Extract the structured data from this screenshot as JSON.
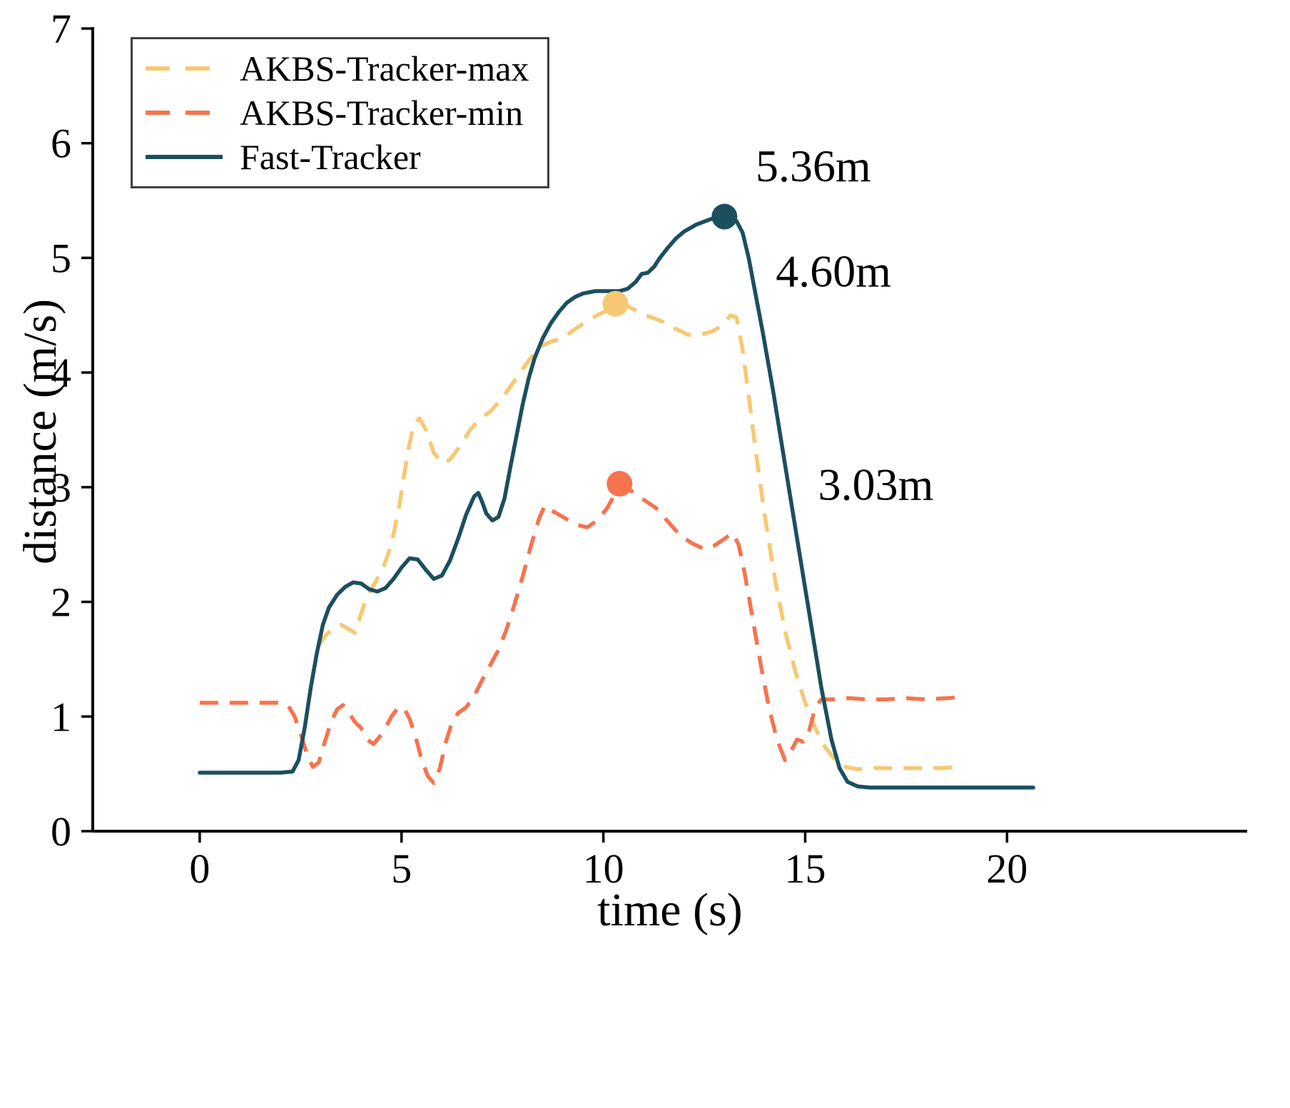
{
  "figure": {
    "background": "#ffffff",
    "axis_color": "#000000",
    "text_color": "#000000",
    "legend_border_color": "#3f3f3f"
  },
  "chart_data": {
    "type": "line",
    "title": "",
    "xlabel": "time (s)",
    "ylabel": "distance (m/s)",
    "xlim": [
      -2.65,
      25.95
    ],
    "ylim": [
      0,
      7
    ],
    "xticks": [
      0,
      5,
      10,
      15,
      20
    ],
    "yticks": [
      0,
      1,
      2,
      3,
      4,
      5,
      6,
      7
    ],
    "grid": false,
    "legend_position": "top-left",
    "series": [
      {
        "name": "AKBS-Tracker-max",
        "color": "#F7C873",
        "style": "dashed",
        "points": [
          [
            2.95,
            1.62
          ],
          [
            3.1,
            1.7
          ],
          [
            3.3,
            1.77
          ],
          [
            3.5,
            1.8
          ],
          [
            3.7,
            1.76
          ],
          [
            3.85,
            1.73
          ],
          [
            4.0,
            1.9
          ],
          [
            4.15,
            2.05
          ],
          [
            4.35,
            2.17
          ],
          [
            4.55,
            2.3
          ],
          [
            4.75,
            2.5
          ],
          [
            4.95,
            2.85
          ],
          [
            5.15,
            3.3
          ],
          [
            5.3,
            3.55
          ],
          [
            5.45,
            3.6
          ],
          [
            5.6,
            3.5
          ],
          [
            5.8,
            3.3
          ],
          [
            6.0,
            3.21
          ],
          [
            6.2,
            3.24
          ],
          [
            6.45,
            3.36
          ],
          [
            6.7,
            3.5
          ],
          [
            6.95,
            3.6
          ],
          [
            7.2,
            3.66
          ],
          [
            7.5,
            3.78
          ],
          [
            7.8,
            3.93
          ],
          [
            8.1,
            4.08
          ],
          [
            8.4,
            4.22
          ],
          [
            8.7,
            4.27
          ],
          [
            9.0,
            4.3
          ],
          [
            9.3,
            4.38
          ],
          [
            9.6,
            4.45
          ],
          [
            9.9,
            4.51
          ],
          [
            10.2,
            4.56
          ],
          [
            10.4,
            4.6
          ],
          [
            10.6,
            4.58
          ],
          [
            10.9,
            4.52
          ],
          [
            11.2,
            4.48
          ],
          [
            11.5,
            4.44
          ],
          [
            11.8,
            4.38
          ],
          [
            12.1,
            4.33
          ],
          [
            12.4,
            4.33
          ],
          [
            12.7,
            4.36
          ],
          [
            12.95,
            4.41
          ],
          [
            13.15,
            4.5
          ],
          [
            13.3,
            4.48
          ],
          [
            13.45,
            4.2
          ],
          [
            13.6,
            3.8
          ],
          [
            13.8,
            3.25
          ],
          [
            14.0,
            2.75
          ],
          [
            14.25,
            2.2
          ],
          [
            14.5,
            1.75
          ],
          [
            14.75,
            1.4
          ],
          [
            15.0,
            1.12
          ],
          [
            15.25,
            0.9
          ],
          [
            15.5,
            0.73
          ],
          [
            15.75,
            0.62
          ],
          [
            16.0,
            0.56
          ],
          [
            16.3,
            0.54
          ],
          [
            16.7,
            0.55
          ],
          [
            17.1,
            0.55
          ],
          [
            17.5,
            0.55
          ],
          [
            18.0,
            0.55
          ],
          [
            18.4,
            0.55
          ],
          [
            18.8,
            0.56
          ]
        ]
      },
      {
        "name": "AKBS-Tracker-min",
        "color": "#F5744E",
        "style": "dashed",
        "points": [
          [
            0,
            1.12
          ],
          [
            0.5,
            1.12
          ],
          [
            1.0,
            1.12
          ],
          [
            1.5,
            1.12
          ],
          [
            2.0,
            1.12
          ],
          [
            2.2,
            1.09
          ],
          [
            2.35,
            1.0
          ],
          [
            2.5,
            0.85
          ],
          [
            2.65,
            0.68
          ],
          [
            2.8,
            0.56
          ],
          [
            2.95,
            0.6
          ],
          [
            3.1,
            0.78
          ],
          [
            3.25,
            0.95
          ],
          [
            3.4,
            1.06
          ],
          [
            3.55,
            1.1
          ],
          [
            3.7,
            1.03
          ],
          [
            3.85,
            0.95
          ],
          [
            4.0,
            0.9
          ],
          [
            4.15,
            0.8
          ],
          [
            4.3,
            0.76
          ],
          [
            4.45,
            0.82
          ],
          [
            4.6,
            0.9
          ],
          [
            4.75,
            1.0
          ],
          [
            4.9,
            1.07
          ],
          [
            5.05,
            1.08
          ],
          [
            5.2,
            0.98
          ],
          [
            5.35,
            0.82
          ],
          [
            5.5,
            0.62
          ],
          [
            5.65,
            0.48
          ],
          [
            5.8,
            0.42
          ],
          [
            5.95,
            0.55
          ],
          [
            6.1,
            0.78
          ],
          [
            6.25,
            0.95
          ],
          [
            6.4,
            1.03
          ],
          [
            6.6,
            1.08
          ],
          [
            6.8,
            1.18
          ],
          [
            7.0,
            1.32
          ],
          [
            7.2,
            1.45
          ],
          [
            7.4,
            1.58
          ],
          [
            7.6,
            1.76
          ],
          [
            7.8,
            1.98
          ],
          [
            8.0,
            2.22
          ],
          [
            8.2,
            2.48
          ],
          [
            8.4,
            2.72
          ],
          [
            8.55,
            2.84
          ],
          [
            8.7,
            2.8
          ],
          [
            8.9,
            2.76
          ],
          [
            9.1,
            2.72
          ],
          [
            9.35,
            2.67
          ],
          [
            9.6,
            2.65
          ],
          [
            9.85,
            2.71
          ],
          [
            10.1,
            2.82
          ],
          [
            10.3,
            2.95
          ],
          [
            10.45,
            3.02
          ],
          [
            10.6,
            2.99
          ],
          [
            10.8,
            2.94
          ],
          [
            11.0,
            2.89
          ],
          [
            11.3,
            2.82
          ],
          [
            11.6,
            2.7
          ],
          [
            11.9,
            2.58
          ],
          [
            12.2,
            2.51
          ],
          [
            12.5,
            2.46
          ],
          [
            12.75,
            2.49
          ],
          [
            13.0,
            2.55
          ],
          [
            13.2,
            2.6
          ],
          [
            13.35,
            2.5
          ],
          [
            13.5,
            2.25
          ],
          [
            13.7,
            1.85
          ],
          [
            13.9,
            1.45
          ],
          [
            14.1,
            1.08
          ],
          [
            14.3,
            0.8
          ],
          [
            14.5,
            0.62
          ],
          [
            14.65,
            0.7
          ],
          [
            14.8,
            0.8
          ],
          [
            14.95,
            0.78
          ],
          [
            15.1,
            0.88
          ],
          [
            15.25,
            1.08
          ],
          [
            15.4,
            1.15
          ],
          [
            15.7,
            1.15
          ],
          [
            16.1,
            1.16
          ],
          [
            16.5,
            1.15
          ],
          [
            17.0,
            1.15
          ],
          [
            17.5,
            1.16
          ],
          [
            18.0,
            1.15
          ],
          [
            18.5,
            1.16
          ],
          [
            18.9,
            1.17
          ]
        ]
      },
      {
        "name": "Fast-Tracker",
        "color": "#1B4F5E",
        "style": "solid",
        "points": [
          [
            0,
            0.51
          ],
          [
            0.5,
            0.51
          ],
          [
            1.0,
            0.51
          ],
          [
            1.5,
            0.51
          ],
          [
            2.0,
            0.51
          ],
          [
            2.3,
            0.52
          ],
          [
            2.45,
            0.62
          ],
          [
            2.6,
            0.9
          ],
          [
            2.75,
            1.25
          ],
          [
            2.9,
            1.55
          ],
          [
            3.05,
            1.8
          ],
          [
            3.2,
            1.95
          ],
          [
            3.4,
            2.06
          ],
          [
            3.6,
            2.13
          ],
          [
            3.8,
            2.17
          ],
          [
            4.0,
            2.16
          ],
          [
            4.2,
            2.11
          ],
          [
            4.4,
            2.09
          ],
          [
            4.6,
            2.12
          ],
          [
            4.8,
            2.2
          ],
          [
            5.0,
            2.3
          ],
          [
            5.2,
            2.38
          ],
          [
            5.4,
            2.37
          ],
          [
            5.6,
            2.28
          ],
          [
            5.8,
            2.2
          ],
          [
            6.0,
            2.23
          ],
          [
            6.2,
            2.36
          ],
          [
            6.4,
            2.55
          ],
          [
            6.6,
            2.76
          ],
          [
            6.8,
            2.92
          ],
          [
            6.9,
            2.95
          ],
          [
            7.0,
            2.87
          ],
          [
            7.1,
            2.77
          ],
          [
            7.25,
            2.71
          ],
          [
            7.4,
            2.74
          ],
          [
            7.55,
            2.9
          ],
          [
            7.7,
            3.18
          ],
          [
            7.85,
            3.45
          ],
          [
            8.0,
            3.72
          ],
          [
            8.15,
            3.95
          ],
          [
            8.3,
            4.13
          ],
          [
            8.5,
            4.3
          ],
          [
            8.7,
            4.43
          ],
          [
            8.9,
            4.53
          ],
          [
            9.1,
            4.61
          ],
          [
            9.3,
            4.66
          ],
          [
            9.5,
            4.69
          ],
          [
            9.8,
            4.71
          ],
          [
            10.1,
            4.71
          ],
          [
            10.4,
            4.71
          ],
          [
            10.6,
            4.73
          ],
          [
            10.8,
            4.79
          ],
          [
            10.95,
            4.86
          ],
          [
            11.1,
            4.87
          ],
          [
            11.25,
            4.92
          ],
          [
            11.4,
            5.0
          ],
          [
            11.6,
            5.09
          ],
          [
            11.8,
            5.17
          ],
          [
            12.0,
            5.23
          ],
          [
            12.3,
            5.29
          ],
          [
            12.6,
            5.33
          ],
          [
            12.85,
            5.36
          ],
          [
            13.1,
            5.36
          ],
          [
            13.3,
            5.32
          ],
          [
            13.45,
            5.22
          ],
          [
            13.6,
            5.0
          ],
          [
            13.75,
            4.72
          ],
          [
            13.95,
            4.35
          ],
          [
            14.2,
            3.85
          ],
          [
            14.5,
            3.2
          ],
          [
            14.8,
            2.55
          ],
          [
            15.1,
            1.9
          ],
          [
            15.4,
            1.25
          ],
          [
            15.65,
            0.8
          ],
          [
            15.85,
            0.55
          ],
          [
            16.05,
            0.43
          ],
          [
            16.3,
            0.39
          ],
          [
            16.6,
            0.38
          ],
          [
            17.0,
            0.38
          ],
          [
            18.0,
            0.38
          ],
          [
            19.0,
            0.38
          ],
          [
            20.0,
            0.38
          ],
          [
            20.65,
            0.38
          ]
        ]
      }
    ],
    "markers": [
      {
        "x": 13.0,
        "y": 5.36,
        "color": "#1B4F5E",
        "series": "Fast-Tracker"
      },
      {
        "x": 10.3,
        "y": 4.6,
        "color": "#F7C873",
        "series": "AKBS-Tracker-max"
      },
      {
        "x": 10.4,
        "y": 3.03,
        "color": "#F5744E",
        "series": "AKBS-Tracker-min"
      }
    ],
    "annotations": [
      {
        "label": "5.36m",
        "x": 15.2,
        "y": 5.67
      },
      {
        "label": "4.60m",
        "x": 15.7,
        "y": 4.75
      },
      {
        "label": "3.03m",
        "x": 16.75,
        "y": 2.89
      }
    ]
  }
}
